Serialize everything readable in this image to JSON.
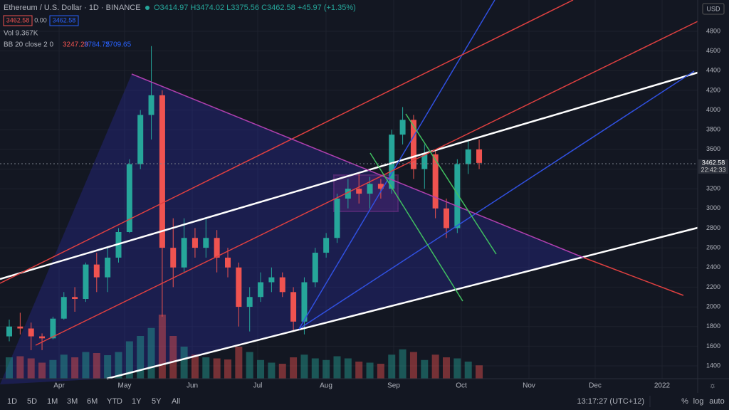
{
  "header": {
    "symbol": "Ethereum / U.S. Dollar · 1D · BINANCE",
    "ohlc": "O3414.97 H3474.02 L3375.56 C3462.58 +45.97 (+1.35%)",
    "sell": "3462.58",
    "spread": "0.00",
    "buy": "3462.58",
    "volume": "Vol 9.367K",
    "bb": "BB 20 close 2 0",
    "bb_basis": "3247.20",
    "bb_upper": "3784.75",
    "bb_lower": "2709.65"
  },
  "chart_data": {
    "type": "candlestick",
    "ylim": [
      1270,
      5118
    ],
    "yticks": [
      1400,
      1600,
      1800,
      2000,
      2200,
      2400,
      2600,
      2800,
      3000,
      3200,
      3400,
      3600,
      3800,
      4000,
      4200,
      4400,
      4600,
      4800
    ],
    "xticks": [
      "Apr",
      "May",
      "Jun",
      "Jul",
      "Aug",
      "Sep",
      "Oct",
      "Nov",
      "Dec",
      "2022"
    ],
    "up_color": "#26a69a",
    "down_color": "#ef5350",
    "ohlc": [
      [
        1700,
        1870,
        1650,
        1800
      ],
      [
        1800,
        1940,
        1720,
        1780
      ],
      [
        1780,
        1840,
        1560,
        1700
      ],
      [
        1700,
        1730,
        1560,
        1680
      ],
      [
        1680,
        1900,
        1670,
        1880
      ],
      [
        1880,
        2150,
        1870,
        2100
      ],
      [
        2100,
        2200,
        1950,
        2080
      ],
      [
        2080,
        2450,
        2050,
        2430
      ],
      [
        2430,
        2550,
        2150,
        2300
      ],
      [
        2300,
        2600,
        2150,
        2500
      ],
      [
        2500,
        2800,
        2450,
        2760
      ],
      [
        2760,
        3500,
        2750,
        3450
      ],
      [
        3450,
        4000,
        3400,
        3950
      ],
      [
        3950,
        4650,
        3700,
        4150
      ],
      [
        4150,
        4200,
        1900,
        2600
      ],
      [
        2600,
        2900,
        2200,
        2400
      ],
      [
        2400,
        2900,
        2350,
        2700
      ],
      [
        2700,
        2800,
        2500,
        2600
      ],
      [
        2600,
        2900,
        2500,
        2700
      ],
      [
        2700,
        2780,
        2350,
        2500
      ],
      [
        2500,
        2600,
        2300,
        2400
      ],
      [
        2400,
        2450,
        1800,
        2000
      ],
      [
        2000,
        2200,
        1750,
        2100
      ],
      [
        2100,
        2350,
        2050,
        2250
      ],
      [
        2250,
        2400,
        2150,
        2300
      ],
      [
        2300,
        2350,
        2100,
        2150
      ],
      [
        2150,
        2200,
        1750,
        1850
      ],
      [
        1850,
        2300,
        1720,
        2250
      ],
      [
        2250,
        2600,
        2200,
        2550
      ],
      [
        2550,
        2750,
        2500,
        2700
      ],
      [
        2700,
        3150,
        2650,
        3100
      ],
      [
        3100,
        3300,
        3000,
        3200
      ],
      [
        3200,
        3350,
        3050,
        3150
      ],
      [
        3150,
        3320,
        3000,
        3250
      ],
      [
        3250,
        3300,
        3100,
        3200
      ],
      [
        3200,
        3800,
        3150,
        3750
      ],
      [
        3750,
        4030,
        3650,
        3900
      ],
      [
        3900,
        3950,
        3300,
        3400
      ],
      [
        3400,
        3650,
        3200,
        3550
      ],
      [
        3550,
        3600,
        2900,
        3000
      ],
      [
        3000,
        3100,
        2700,
        2800
      ],
      [
        2800,
        3500,
        2750,
        3450
      ],
      [
        3450,
        3700,
        3350,
        3600
      ],
      [
        3600,
        3700,
        3400,
        3462.58
      ]
    ],
    "volume": [
      40,
      42,
      38,
      30,
      35,
      45,
      40,
      50,
      48,
      44,
      50,
      70,
      80,
      95,
      120,
      80,
      60,
      45,
      40,
      38,
      36,
      60,
      50,
      35,
      30,
      28,
      40,
      45,
      38,
      35,
      42,
      38,
      32,
      30,
      28,
      45,
      55,
      50,
      35,
      45,
      40,
      38,
      32,
      25
    ],
    "last_price": "3462.58",
    "countdown": "22:42:33",
    "currency": "USD"
  },
  "toolbar": {
    "ranges": [
      "1D",
      "5D",
      "1M",
      "3M",
      "6M",
      "YTD",
      "1Y",
      "5Y",
      "All"
    ],
    "clock": "13:17:27 (UTC+12)",
    "percent": "%",
    "log": "log",
    "auto": "auto"
  }
}
